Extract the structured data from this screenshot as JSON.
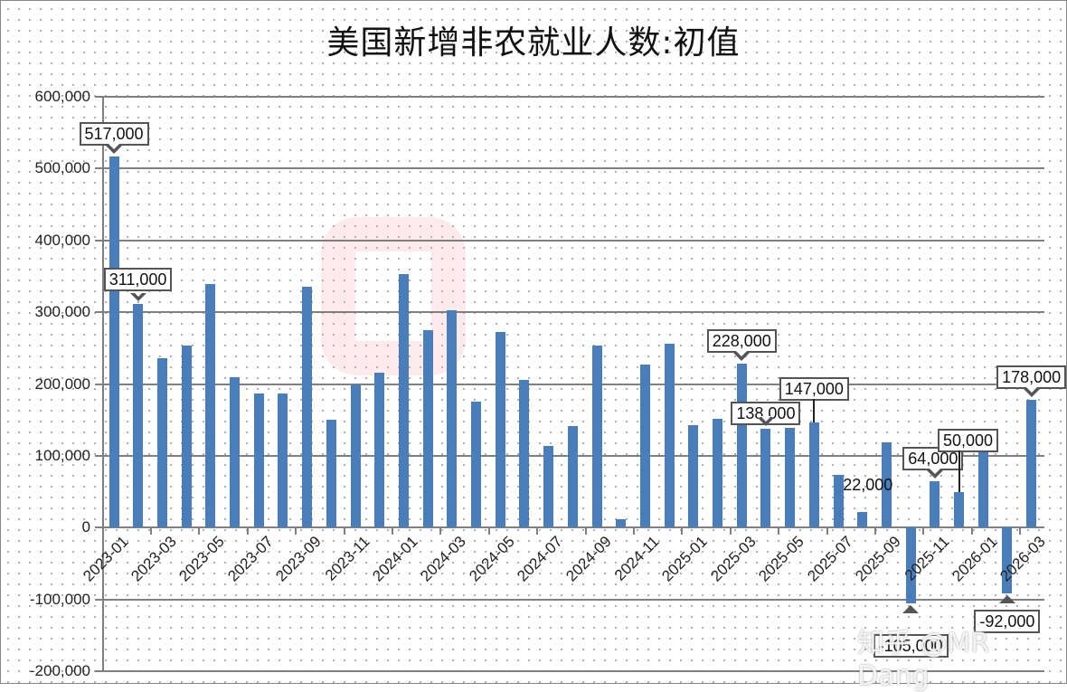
{
  "chart_data": {
    "type": "bar",
    "title": "美国新增非农就业人数:初值",
    "xlabel": "",
    "ylabel": "",
    "ylim": [
      -200000,
      600000
    ],
    "yticks": [
      600000,
      500000,
      400000,
      300000,
      200000,
      100000,
      0,
      -100000,
      -200000
    ],
    "ytick_labels": [
      "600,000",
      "500,000",
      "400,000",
      "300,000",
      "200,000",
      "100,000",
      "0",
      "-100,000",
      "-200,000"
    ],
    "grid": true,
    "legend": null,
    "categories": [
      "2023-01",
      "2023-02",
      "2023-03",
      "2023-04",
      "2023-05",
      "2023-06",
      "2023-07",
      "2023-08",
      "2023-09",
      "2023-10",
      "2023-11",
      "2023-12",
      "2024-01",
      "2024-02",
      "2024-03",
      "2024-04",
      "2024-05",
      "2024-06",
      "2024-07",
      "2024-08",
      "2024-09",
      "2024-10",
      "2024-11",
      "2024-12",
      "2025-01",
      "2025-02",
      "2025-03",
      "2025-04",
      "2025-05",
      "2025-06",
      "2025-07",
      "2025-08",
      "2025-09",
      "2025-10",
      "2025-11",
      "2025-12",
      "2026-01",
      "2026-02",
      "2026-03"
    ],
    "xtick_labels": [
      "2023-01",
      "2023-03",
      "2023-05",
      "2023-07",
      "2023-09",
      "2023-11",
      "2024-01",
      "2024-03",
      "2024-05",
      "2024-07",
      "2024-09",
      "2024-11",
      "2025-01",
      "2025-03",
      "2025-05",
      "2025-07",
      "2025-09",
      "2025-11",
      "2026-01",
      "2026-03"
    ],
    "series": [
      {
        "name": "美国新增非农就业人数:初值",
        "color": "#4a7ebb",
        "values": [
          517000,
          311000,
          236000,
          253000,
          339000,
          209000,
          187000,
          187000,
          336000,
          150000,
          199000,
          216000,
          353000,
          275000,
          303000,
          175000,
          272000,
          206000,
          114000,
          142000,
          254000,
          12000,
          227000,
          256000,
          143000,
          151000,
          228000,
          138000,
          139000,
          147000,
          73000,
          22000,
          119000,
          -105000,
          64000,
          50000,
          130000,
          -92000,
          178000
        ]
      }
    ],
    "annotations": [
      {
        "category": "2023-01",
        "text": "517,000",
        "style": "callout-down"
      },
      {
        "category": "2023-02",
        "text": "311,000",
        "style": "callout-down"
      },
      {
        "category": "2025-03",
        "text": "228,000",
        "style": "callout-down"
      },
      {
        "category": "2025-04",
        "text": "138,000",
        "style": "callout-down"
      },
      {
        "category": "2025-06",
        "text": "147,000",
        "style": "callout-leader"
      },
      {
        "category": "2025-08",
        "text": "22,000",
        "style": "plain"
      },
      {
        "category": "2025-10",
        "text": "-105,000",
        "style": "callout-up"
      },
      {
        "category": "2025-11",
        "text": "64,000",
        "style": "callout-down"
      },
      {
        "category": "2025-12",
        "text": "50,000",
        "style": "callout-leader"
      },
      {
        "category": "2026-02",
        "text": "-92,000",
        "style": "callout-up"
      },
      {
        "category": "2026-03",
        "text": "178,000",
        "style": "callout-down"
      }
    ]
  },
  "watermark": {
    "credit": "知乎 @MR Dang"
  }
}
